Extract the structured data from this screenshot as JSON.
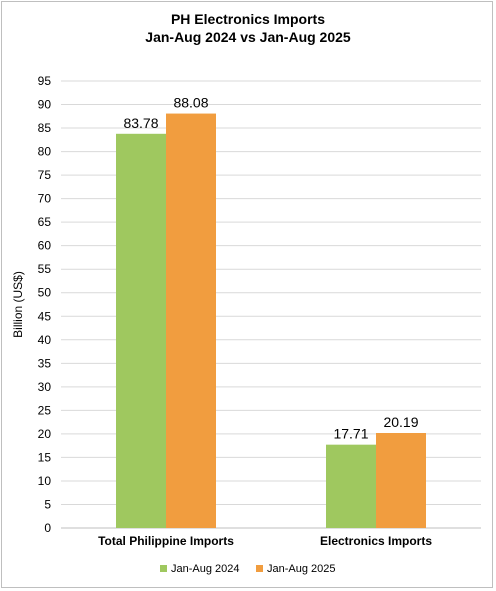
{
  "chart_data": {
    "type": "bar",
    "title_line1": "PH Electronics Imports",
    "title_line2": "Jan-Aug 2024 vs Jan-Aug 2025",
    "xlabel": "",
    "ylabel": "Billion (US$)",
    "categories": [
      "Total Philippine Imports",
      "Electronics Imports"
    ],
    "series": [
      {
        "name": "Jan-Aug 2024",
        "values": [
          83.78,
          17.71
        ],
        "color": "#9fc85f"
      },
      {
        "name": "Jan-Aug 2025",
        "values": [
          88.08,
          20.19
        ],
        "color": "#f19d3f"
      }
    ],
    "ylim": [
      0,
      95
    ],
    "yticks": [
      0,
      5,
      10,
      15,
      20,
      25,
      30,
      35,
      40,
      45,
      50,
      55,
      60,
      65,
      70,
      75,
      80,
      85,
      90,
      95
    ],
    "grid": true,
    "legend": "bottom",
    "data_labels": true
  }
}
